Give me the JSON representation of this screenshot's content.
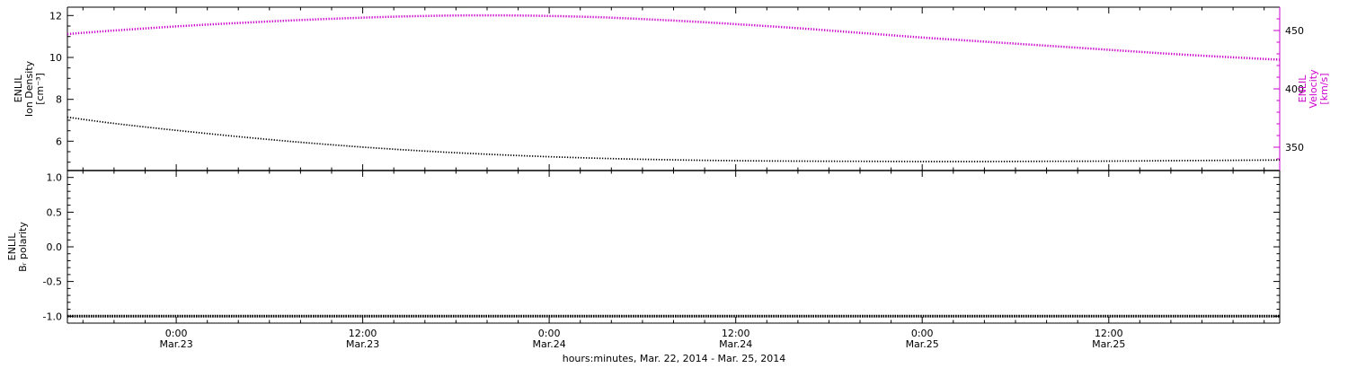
{
  "figure": {
    "background": "#ffffff",
    "xlabel": "hours:minutes, Mar. 22, 2014 - Mar. 25, 2014",
    "x_range_hours": [
      17,
      95
    ],
    "x_minor_step_hours": 2,
    "x_ticks": [
      {
        "hour": 24,
        "label_line1": "0:00",
        "label_line2": "Mar.23"
      },
      {
        "hour": 36,
        "label_line1": "12:00",
        "label_line2": "Mar.23"
      },
      {
        "hour": 48,
        "label_line1": "0:00",
        "label_line2": "Mar.24"
      },
      {
        "hour": 60,
        "label_line1": "12:00",
        "label_line2": "Mar.24"
      },
      {
        "hour": 72,
        "label_line1": "0:00",
        "label_line2": "Mar.25"
      },
      {
        "hour": 84,
        "label_line1": "12:00",
        "label_line2": "Mar.25"
      }
    ],
    "colors": {
      "axis": "#000000",
      "density": "#000000",
      "velocity": "#cc00cc",
      "polarity": "#000000"
    }
  },
  "chart_data": [
    {
      "type": "line",
      "panel": "top",
      "x_unit": "hours since Mar. 22, 2014 00:00",
      "x": [
        17,
        20,
        24,
        28,
        32,
        36,
        40,
        44,
        48,
        52,
        56,
        60,
        64,
        68,
        72,
        76,
        80,
        84,
        88,
        92,
        95
      ],
      "series": [
        {
          "name": "ENLIL Ion Density",
          "axis": "left",
          "color": "#000000",
          "values": [
            7.15,
            6.85,
            6.52,
            6.22,
            5.95,
            5.72,
            5.53,
            5.38,
            5.26,
            5.17,
            5.11,
            5.07,
            5.05,
            5.04,
            5.03,
            5.03,
            5.04,
            5.05,
            5.07,
            5.09,
            5.1
          ]
        },
        {
          "name": "ENLIL Velocity",
          "axis": "right",
          "color": "#cc00cc",
          "values": [
            447,
            450,
            453.5,
            456.5,
            459,
            461,
            462.5,
            463,
            462.5,
            461,
            458.5,
            455.5,
            452,
            448,
            444,
            440.5,
            437,
            433.5,
            430,
            427,
            425
          ]
        }
      ],
      "left_axis": {
        "title_lines": [
          "ENLIL",
          "Ion Density",
          "[cm⁻³]"
        ],
        "ylim": [
          4.6,
          12.4
        ],
        "tick_values": [
          6,
          8,
          10,
          12
        ],
        "tick_labels": [
          "6",
          "8",
          "10",
          "12"
        ],
        "minor_step": 0.5,
        "color": "#000000"
      },
      "right_axis": {
        "title_lines": [
          "ENLIL",
          "Velocity",
          "[km/s]"
        ],
        "ylim": [
          330,
          470
        ],
        "tick_values": [
          350,
          400,
          450
        ],
        "tick_labels": [
          "350",
          "400",
          "450"
        ],
        "minor_step": 10,
        "color": "#cc00cc"
      }
    },
    {
      "type": "line",
      "panel": "bottom",
      "x_unit": "hours since Mar. 22, 2014 00:00",
      "x": [
        17,
        95
      ],
      "series": [
        {
          "name": "ENLIL Br polarity",
          "axis": "left",
          "color": "#000000",
          "values": [
            -1.0,
            -1.0
          ]
        }
      ],
      "left_axis": {
        "title_lines": [
          "ENLIL",
          "Bᵣ polarity"
        ],
        "ylim": [
          -1.1,
          1.1
        ],
        "tick_values": [
          -1.0,
          -0.5,
          0.0,
          0.5,
          1.0
        ],
        "tick_labels": [
          "-1.0",
          "-0.5",
          "0.0",
          "0.5",
          "1.0"
        ],
        "minor_step": 0.1,
        "color": "#000000"
      }
    }
  ]
}
